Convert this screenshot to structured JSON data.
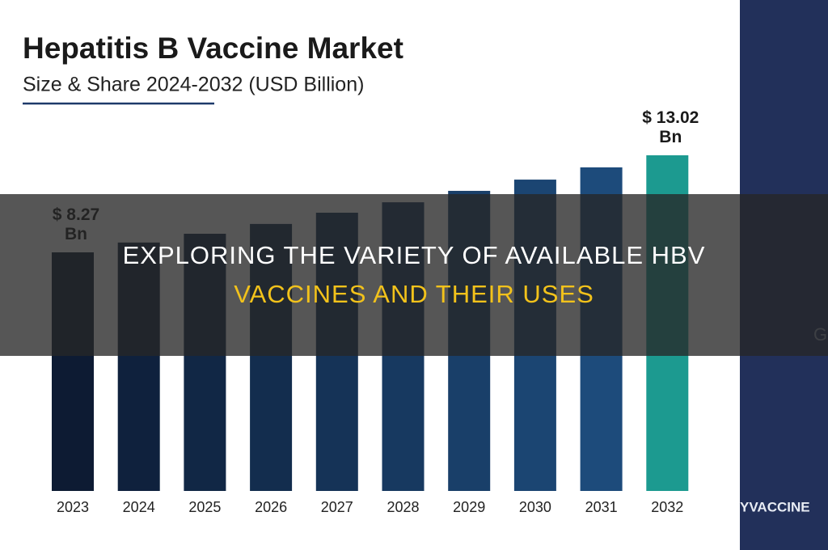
{
  "chart_data": {
    "type": "bar",
    "title": "Hepatitis B Vaccine Market",
    "subtitle": "Size & Share 2024-2032 (USD Billion)",
    "categories": [
      "2023",
      "2024",
      "2025",
      "2026",
      "2027",
      "2028",
      "2029",
      "2030",
      "2031",
      "2032"
    ],
    "values": [
      8.27,
      8.75,
      9.18,
      9.66,
      10.21,
      10.72,
      11.28,
      11.83,
      12.43,
      13.02
    ],
    "value_labels": [
      "$ 8.27 Bn",
      null,
      null,
      null,
      null,
      null,
      null,
      null,
      null,
      "$ 13.02 Bn"
    ],
    "colors": [
      "#0d1b33",
      "#0f213d",
      "#112745",
      "#132d4e",
      "#153357",
      "#173960",
      "#193f69",
      "#1b4572",
      "#1d4b7b",
      "#1c9a90"
    ]
  },
  "banner": {
    "line1": "EXPLORING THE VARIETY OF AVAILABLE HBV",
    "line2": "VACCINES AND THEIR USES"
  },
  "background_texts": [
    "G",
    "YVACCINE"
  ]
}
